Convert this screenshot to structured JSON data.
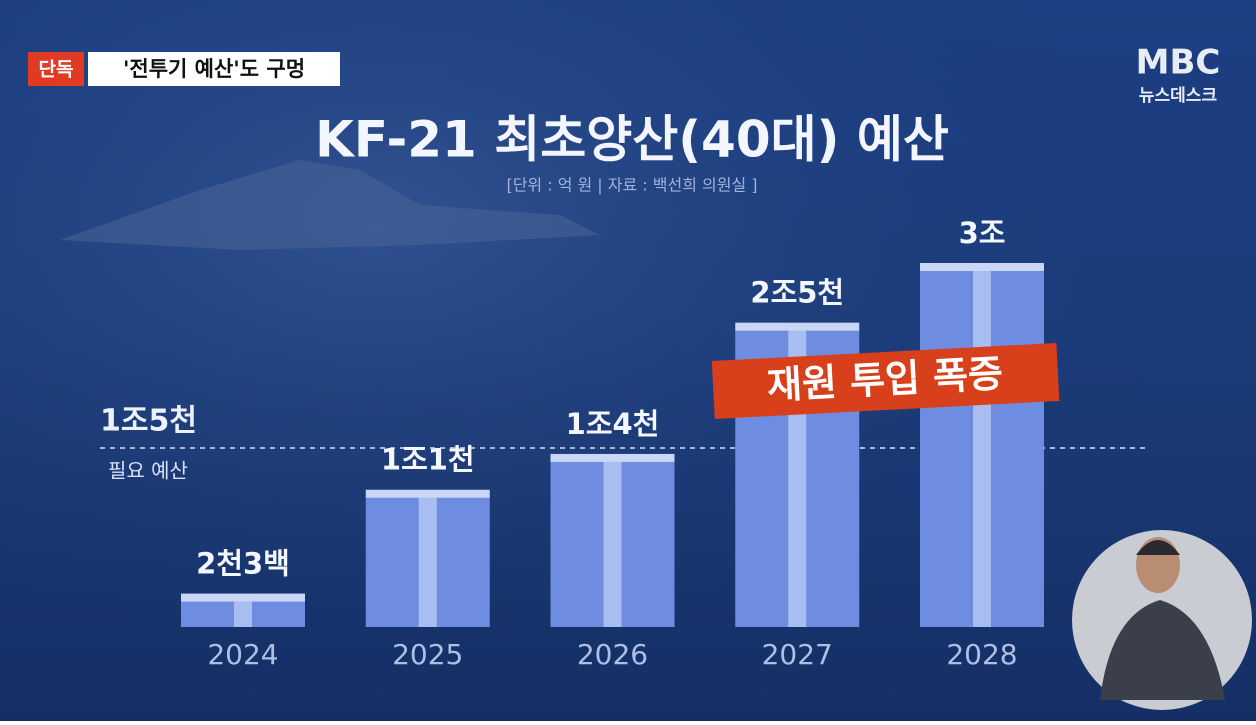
{
  "badge": "단독",
  "headline": "'전투기 예산'도 구멍",
  "logo": {
    "brand": "MBC",
    "program": "뉴스데스크"
  },
  "chart_data": {
    "type": "bar",
    "title": "KF-21 최초양산(40대) 예산",
    "subtitle": "[단위 : 억 원 | 자료 : 백선희 의원실 ]",
    "categories": [
      "2024",
      "2025",
      "2026",
      "2027",
      "2028"
    ],
    "values": [
      2300,
      11000,
      14000,
      25000,
      30000
    ],
    "value_labels": [
      "2천3백",
      "1조1천",
      "1조4천",
      "2조5천",
      "3조"
    ],
    "color": "#6e8de0",
    "reference_line": {
      "value": 15000,
      "label": "1조5천",
      "note": "필요 예산"
    },
    "annotation": "재원 투입 폭증"
  }
}
